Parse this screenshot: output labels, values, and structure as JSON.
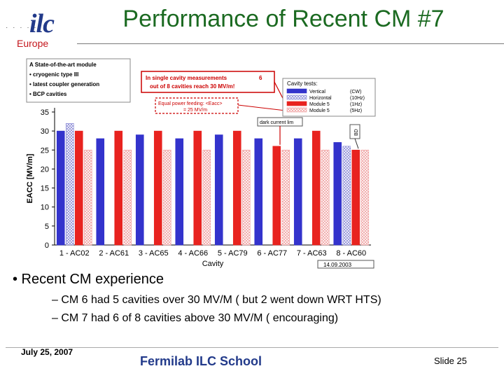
{
  "logo": {
    "brand": "ilc",
    "region": "Europe"
  },
  "title": "Performance of Recent CM #7",
  "info_box": {
    "heading": "A State-of-the-art module",
    "items": [
      "• cryogenic type III",
      "• latest coupler generation",
      "• BCP cavities"
    ]
  },
  "callouts": {
    "single_cavity": [
      "In single cavity measurements",
      "out of 8 cavities reach 30 MV/m!"
    ],
    "single_cavity_count": "6",
    "equal_power": [
      "Equal power feeding: <Eacc>",
      "= 25 MV/m"
    ],
    "dark_current": "dark current lim",
    "bd": "BD",
    "date_stamp": "14.09.2003"
  },
  "legend": {
    "title": "Cavity tests:",
    "entries": [
      {
        "name": "Vertical",
        "tag": "(CW)"
      },
      {
        "name": "Horizontal",
        "tag": "(10Hz)"
      },
      {
        "name": "Module 5",
        "tag": "(1Hz)"
      },
      {
        "name": "Module 5",
        "tag": "(5Hz)"
      }
    ]
  },
  "colors": {
    "title": "#1b6a21",
    "vertical": "#3333cc",
    "horizontal": "#8a8ad6",
    "module1hz": "#e8231f",
    "module5hz": "#f0a0a0",
    "callout": "#cc0000"
  },
  "chart_data": {
    "type": "bar",
    "xlabel": "Cavity",
    "ylabel": "EACC [MV/m]",
    "ylim": [
      0,
      35
    ],
    "yticks": [
      0,
      5,
      10,
      15,
      20,
      25,
      30,
      35
    ],
    "grid": false,
    "legend_position": "top-right",
    "categories": [
      "1 - AC02",
      "2 - AC61",
      "3 - AC65",
      "4 - AC66",
      "5 - AC79",
      "6 - AC77",
      "7 - AC63",
      "8 - AC60"
    ],
    "series": [
      {
        "name": "Vertical (CW)",
        "values": [
          30,
          28,
          29,
          28,
          29,
          28,
          28,
          27
        ]
      },
      {
        "name": "Horizontal (10Hz)",
        "values": [
          32,
          0,
          0,
          0,
          0,
          0,
          0,
          26
        ]
      },
      {
        "name": "Module 5 (1Hz)",
        "values": [
          30,
          30,
          30,
          30,
          30,
          26,
          30,
          25
        ]
      },
      {
        "name": "Module 5 (5Hz)",
        "values": [
          25,
          25,
          25,
          25,
          25,
          25,
          25,
          25
        ]
      }
    ]
  },
  "bullet": "• Recent CM experience",
  "sub_points": [
    "– CM 6 had 5 cavities over 30 MV/M ( but 2 went down WRT HTS)",
    "– CM 7 had 6 of 8 cavities above 30 MV/M ( encouraging)"
  ],
  "footer": {
    "date": "July 25, 2007",
    "school": "Fermilab ILC School",
    "slide": "Slide 25"
  }
}
